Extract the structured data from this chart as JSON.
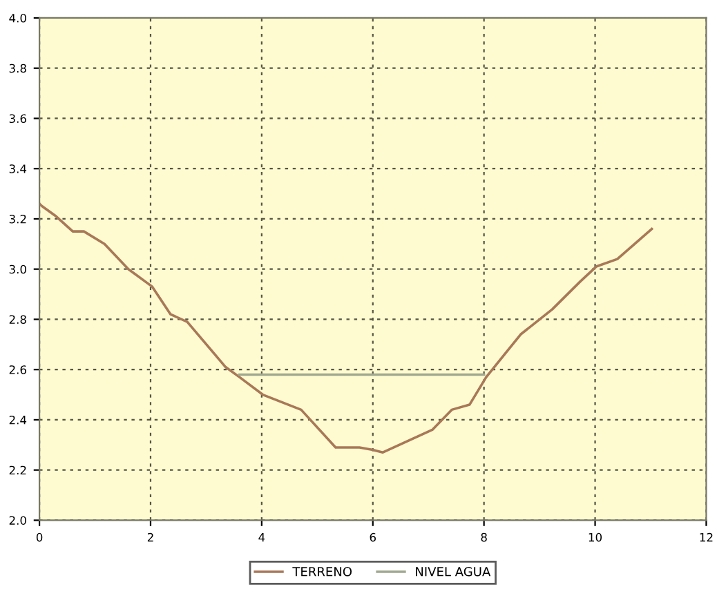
{
  "chart_data": {
    "type": "line",
    "xlim": [
      0,
      12
    ],
    "xticks": [
      0,
      2,
      4,
      6,
      8,
      10,
      12
    ],
    "ylim": [
      2.0,
      4.0
    ],
    "yticks": [
      {
        "value": 2.0,
        "label": "2.0"
      },
      2.2,
      2.4,
      2.6,
      2.8,
      {
        "value": 3.0,
        "label": "3.0"
      },
      3.2,
      3.4,
      3.6,
      3.8,
      {
        "value": 4.0,
        "label": "4.0"
      }
    ],
    "grid": true,
    "legend": "bottom",
    "marker": "none",
    "line_style": "solid",
    "series": [
      {
        "name": "TERRENO",
        "color": "#a87858",
        "x": [
          0,
          0.05,
          0.3,
          0.6,
          0.8,
          1.17,
          1.6,
          2.03,
          2.36,
          2.66,
          3.35,
          3.6,
          4.02,
          4.71,
          5.33,
          5.76,
          6.0,
          6.18,
          7.07,
          7.42,
          7.74,
          8.04,
          8.66,
          9.23,
          9.73,
          10.02,
          10.4,
          11.02
        ],
        "values": [
          3.26,
          3.25,
          3.21,
          3.15,
          3.15,
          3.1,
          3.0,
          2.93,
          2.82,
          2.79,
          2.61,
          2.57,
          2.5,
          2.44,
          2.29,
          2.29,
          2.28,
          2.27,
          2.36,
          2.44,
          2.46,
          2.57,
          2.74,
          2.84,
          2.95,
          3.01,
          3.04,
          3.16
        ]
      },
      {
        "name": "NIVEL AGUA",
        "color": "#a0a890",
        "x": [
          3.6,
          8.0
        ],
        "values": [
          2.58,
          2.58
        ]
      }
    ]
  }
}
